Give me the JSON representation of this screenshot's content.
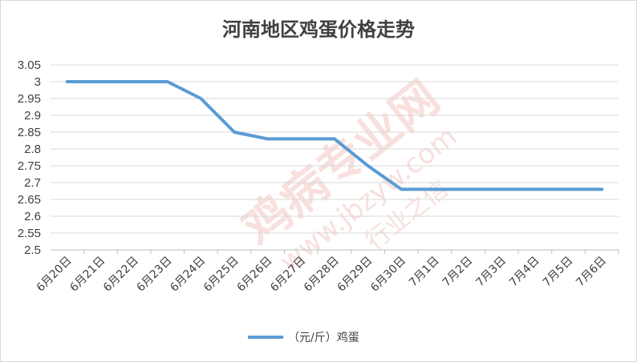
{
  "chart_data": {
    "type": "line",
    "title": "河南地区鸡蛋价格走势",
    "xlabel": "",
    "ylabel": "",
    "categories": [
      "6月20日",
      "6月21日",
      "6月22日",
      "6月23日",
      "6月24日",
      "6月25日",
      "6月26日",
      "6月27日",
      "6月28日",
      "6月29日",
      "6月30日",
      "7月1日",
      "7月2日",
      "7月3日",
      "7月4日",
      "7月5日",
      "7月6日"
    ],
    "series": [
      {
        "name": "（元/斤）鸡蛋",
        "values": [
          3.0,
          3.0,
          3.0,
          3.0,
          2.95,
          2.85,
          2.83,
          2.83,
          2.83,
          2.75,
          2.68,
          2.68,
          2.68,
          2.68,
          2.68,
          2.68,
          2.68
        ]
      }
    ],
    "ylim": [
      2.5,
      3.05
    ],
    "yticks": [
      "3.05",
      "3",
      "2.95",
      "2.9",
      "2.85",
      "2.8",
      "2.75",
      "2.7",
      "2.65",
      "2.6",
      "2.55",
      "2.5"
    ],
    "grid": true,
    "legend_position": "bottom",
    "colors": {
      "line": "#5b9bd5",
      "grid": "#d9d9d9",
      "text": "#404040",
      "watermark": "#f1c7c2"
    }
  },
  "watermark": {
    "main": "鸡病专业网",
    "url": "www.jbzyw.com",
    "slogan": "行业之信"
  }
}
